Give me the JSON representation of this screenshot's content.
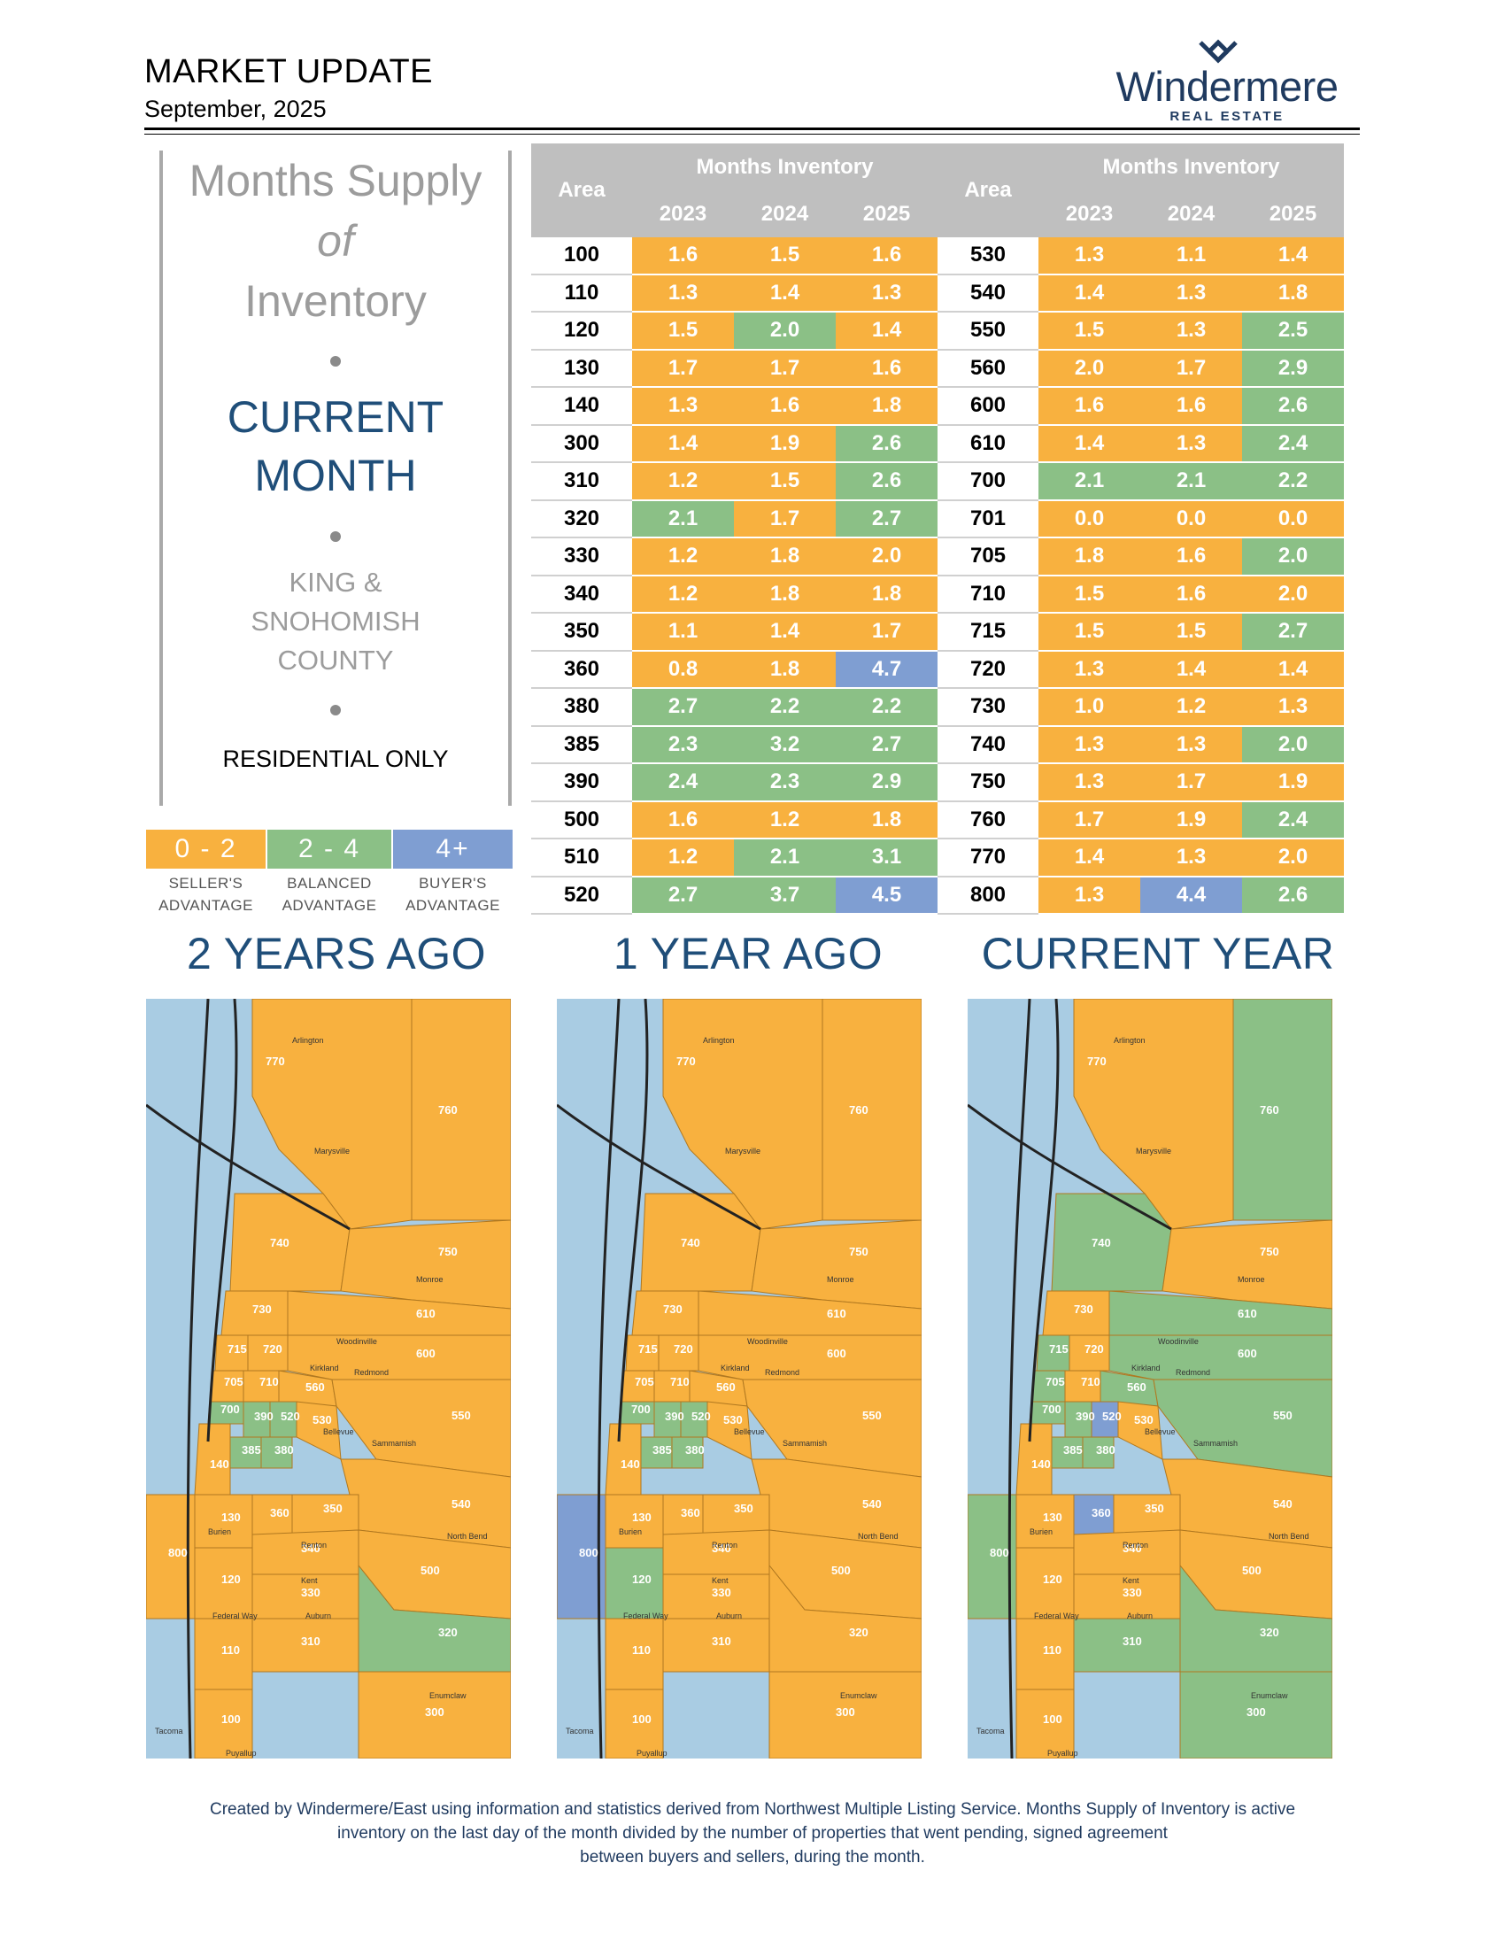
{
  "header": {
    "title": "MARKET UPDATE",
    "date": "September, 2025",
    "logo_name": "Windermere",
    "logo_sub": "REAL ESTATE"
  },
  "left_panel": {
    "line1": "Months Supply",
    "line2": "of",
    "line3": "Inventory",
    "current1": "CURRENT",
    "current2": "MONTH",
    "county1": "KING &",
    "county2": "SNOHOMISH",
    "county3": "COUNTY",
    "residential": "RESIDENTIAL ONLY"
  },
  "legend": [
    {
      "range": "0 - 2",
      "label1": "SELLER'S",
      "label2": "ADVANTAGE",
      "color": "#f8b13f"
    },
    {
      "range": "2 - 4",
      "label1": "BALANCED",
      "label2": "ADVANTAGE",
      "color": "#8bc086"
    },
    {
      "range": "4+",
      "label1": "BUYER'S",
      "label2": "ADVANTAGE",
      "color": "#7f9ed2"
    }
  ],
  "table": {
    "area_header": "Area",
    "group_header": "Months Inventory",
    "years": [
      "2023",
      "2024",
      "2025"
    ],
    "left": [
      {
        "area": "100",
        "v": [
          "1.6",
          "1.5",
          "1.6"
        ]
      },
      {
        "area": "110",
        "v": [
          "1.3",
          "1.4",
          "1.3"
        ]
      },
      {
        "area": "120",
        "v": [
          "1.5",
          "2.0",
          "1.4"
        ]
      },
      {
        "area": "130",
        "v": [
          "1.7",
          "1.7",
          "1.6"
        ]
      },
      {
        "area": "140",
        "v": [
          "1.3",
          "1.6",
          "1.8"
        ]
      },
      {
        "area": "300",
        "v": [
          "1.4",
          "1.9",
          "2.6"
        ]
      },
      {
        "area": "310",
        "v": [
          "1.2",
          "1.5",
          "2.6"
        ]
      },
      {
        "area": "320",
        "v": [
          "2.1",
          "1.7",
          "2.7"
        ]
      },
      {
        "area": "330",
        "v": [
          "1.2",
          "1.8",
          "2.0"
        ]
      },
      {
        "area": "340",
        "v": [
          "1.2",
          "1.8",
          "1.8"
        ]
      },
      {
        "area": "350",
        "v": [
          "1.1",
          "1.4",
          "1.7"
        ]
      },
      {
        "area": "360",
        "v": [
          "0.8",
          "1.8",
          "4.7"
        ]
      },
      {
        "area": "380",
        "v": [
          "2.7",
          "2.2",
          "2.2"
        ]
      },
      {
        "area": "385",
        "v": [
          "2.3",
          "3.2",
          "2.7"
        ]
      },
      {
        "area": "390",
        "v": [
          "2.4",
          "2.3",
          "2.9"
        ]
      },
      {
        "area": "500",
        "v": [
          "1.6",
          "1.2",
          "1.8"
        ]
      },
      {
        "area": "510",
        "v": [
          "1.2",
          "2.1",
          "3.1"
        ]
      },
      {
        "area": "520",
        "v": [
          "2.7",
          "3.7",
          "4.5"
        ]
      }
    ],
    "right": [
      {
        "area": "530",
        "v": [
          "1.3",
          "1.1",
          "1.4"
        ]
      },
      {
        "area": "540",
        "v": [
          "1.4",
          "1.3",
          "1.8"
        ]
      },
      {
        "area": "550",
        "v": [
          "1.5",
          "1.3",
          "2.5"
        ]
      },
      {
        "area": "560",
        "v": [
          "2.0",
          "1.7",
          "2.9"
        ]
      },
      {
        "area": "600",
        "v": [
          "1.6",
          "1.6",
          "2.6"
        ]
      },
      {
        "area": "610",
        "v": [
          "1.4",
          "1.3",
          "2.4"
        ]
      },
      {
        "area": "700",
        "v": [
          "2.1",
          "2.1",
          "2.2"
        ]
      },
      {
        "area": "701",
        "v": [
          "0.0",
          "0.0",
          "0.0"
        ]
      },
      {
        "area": "705",
        "v": [
          "1.8",
          "1.6",
          "2.0"
        ]
      },
      {
        "area": "710",
        "v": [
          "1.5",
          "1.6",
          "2.0"
        ]
      },
      {
        "area": "715",
        "v": [
          "1.5",
          "1.5",
          "2.7"
        ]
      },
      {
        "area": "720",
        "v": [
          "1.3",
          "1.4",
          "1.4"
        ]
      },
      {
        "area": "730",
        "v": [
          "1.0",
          "1.2",
          "1.3"
        ]
      },
      {
        "area": "740",
        "v": [
          "1.3",
          "1.3",
          "2.0"
        ]
      },
      {
        "area": "750",
        "v": [
          "1.3",
          "1.7",
          "1.9"
        ]
      },
      {
        "area": "760",
        "v": [
          "1.7",
          "1.9",
          "2.4"
        ]
      },
      {
        "area": "770",
        "v": [
          "1.4",
          "1.3",
          "2.0"
        ]
      },
      {
        "area": "800",
        "v": [
          "1.3",
          "4.4",
          "2.6"
        ]
      }
    ],
    "cell_levels_left": [
      [
        "s",
        "s",
        "s"
      ],
      [
        "s",
        "s",
        "s"
      ],
      [
        "s",
        "b",
        "s"
      ],
      [
        "s",
        "s",
        "s"
      ],
      [
        "s",
        "s",
        "s"
      ],
      [
        "s",
        "s",
        "b"
      ],
      [
        "s",
        "s",
        "b"
      ],
      [
        "b",
        "s",
        "b"
      ],
      [
        "s",
        "s",
        "s"
      ],
      [
        "s",
        "s",
        "s"
      ],
      [
        "s",
        "s",
        "s"
      ],
      [
        "s",
        "s",
        "u"
      ],
      [
        "b",
        "b",
        "b"
      ],
      [
        "b",
        "b",
        "b"
      ],
      [
        "b",
        "b",
        "b"
      ],
      [
        "s",
        "s",
        "s"
      ],
      [
        "s",
        "b",
        "b"
      ],
      [
        "b",
        "b",
        "u"
      ]
    ],
    "cell_levels_right": [
      [
        "s",
        "s",
        "s"
      ],
      [
        "s",
        "s",
        "s"
      ],
      [
        "s",
        "s",
        "b"
      ],
      [
        "s",
        "s",
        "b"
      ],
      [
        "s",
        "s",
        "b"
      ],
      [
        "s",
        "s",
        "b"
      ],
      [
        "b",
        "b",
        "b"
      ],
      [
        "s",
        "s",
        "s"
      ],
      [
        "s",
        "s",
        "b"
      ],
      [
        "s",
        "s",
        "s"
      ],
      [
        "s",
        "s",
        "b"
      ],
      [
        "s",
        "s",
        "s"
      ],
      [
        "s",
        "s",
        "s"
      ],
      [
        "s",
        "s",
        "b"
      ],
      [
        "s",
        "s",
        "s"
      ],
      [
        "s",
        "s",
        "b"
      ],
      [
        "s",
        "s",
        "s"
      ],
      [
        "s",
        "u",
        "b"
      ]
    ]
  },
  "maps": {
    "headings": [
      "2 YEARS AGO",
      "1 YEAR AGO",
      "CURRENT YEAR"
    ],
    "area_labels": [
      "770",
      "760",
      "740",
      "750",
      "730",
      "610",
      "715",
      "720",
      "600",
      "705",
      "710",
      "560",
      "530",
      "550",
      "700",
      "390",
      "520",
      "385",
      "380",
      "610",
      "540",
      "140",
      "130",
      "360",
      "350",
      "500",
      "800",
      "340",
      "120",
      "330",
      "320",
      "310",
      "110",
      "100",
      "300"
    ],
    "place_labels": [
      "Arlington",
      "Marysville",
      "Monroe",
      "Woodinville",
      "Redmond",
      "Kirkland",
      "Bellevue",
      "Sammamish",
      "Renton",
      "Kent",
      "Auburn",
      "Enumclaw",
      "North Bend",
      "Federal Way",
      "Burien",
      "Tacoma",
      "Puyallup"
    ],
    "colors": {
      "seller": "#f8b13f",
      "balanced": "#8bc086",
      "buyer": "#7f9ed2",
      "water": "#a9cce3"
    }
  },
  "footer": {
    "line1": "Created by Windermere/East using information and statistics derived from Northwest Multiple Listing Service. Months Supply of Inventory is active",
    "line2": "inventory on the last day of the month divided by the number of properties that went pending, signed agreement",
    "line3": "between buyers and sellers, during the month."
  }
}
